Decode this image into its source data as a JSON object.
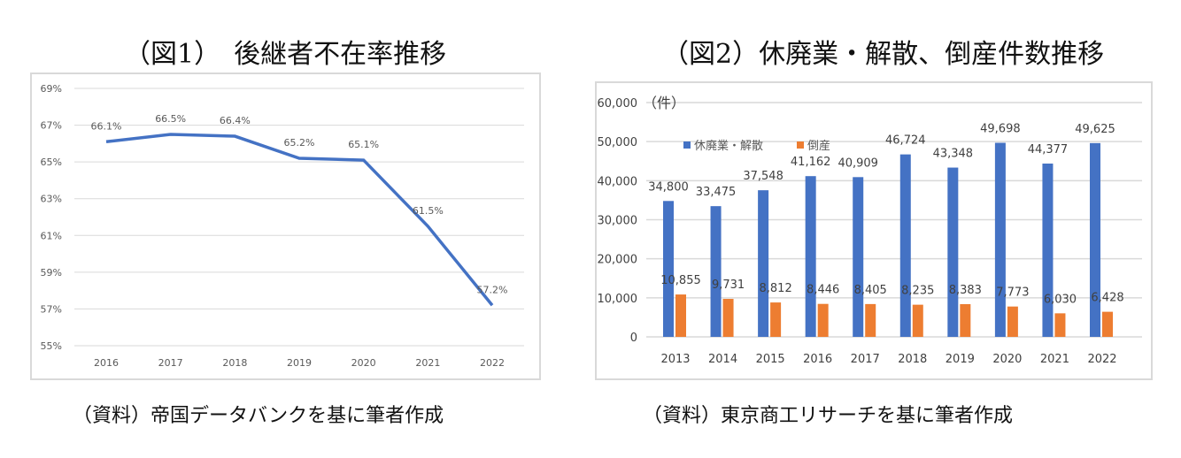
{
  "chart_data": [
    {
      "type": "line",
      "title": "（図1）　後継者不在率推移",
      "caption": "（資料）帝国データバンクを基に筆者作成",
      "categories": [
        "2016",
        "2017",
        "2018",
        "2019",
        "2020",
        "2021",
        "2022"
      ],
      "values": [
        66.1,
        66.5,
        66.4,
        65.2,
        65.1,
        61.5,
        57.2
      ],
      "data_labels": [
        "66.1%",
        "66.5%",
        "66.4%",
        "65.2%",
        "65.1%",
        "61.5%",
        "57.2%"
      ],
      "ylim": [
        55,
        69
      ],
      "yticks": [
        "69%",
        "67%",
        "65%",
        "63%",
        "61%",
        "59%",
        "57%",
        "55%"
      ],
      "ytick_values": [
        69,
        67,
        65,
        63,
        61,
        59,
        57,
        55
      ],
      "grid": true,
      "color": "#4472c4"
    },
    {
      "type": "bar",
      "title": "（図2）休廃業・解散、倒産件数推移",
      "caption": "（資料）東京商工リサーチを基に筆者作成",
      "unit_label": "（件）",
      "categories": [
        "2013",
        "2014",
        "2015",
        "2016",
        "2017",
        "2018",
        "2019",
        "2020",
        "2021",
        "2022"
      ],
      "series": [
        {
          "name": "休廃業・解散",
          "color": "#4472c4",
          "values": [
            34800,
            33475,
            37548,
            41162,
            40909,
            46724,
            43348,
            49698,
            44377,
            49625
          ],
          "labels": [
            "34,800",
            "33,475",
            "37,548",
            "41,162",
            "40,909",
            "46,724",
            "43,348",
            "49,698",
            "44,377",
            "49,625"
          ]
        },
        {
          "name": "倒産",
          "color": "#ed7d31",
          "values": [
            10855,
            9731,
            8812,
            8446,
            8405,
            8235,
            8383,
            7773,
            6030,
            6428
          ],
          "labels": [
            "10,855",
            "9,731",
            "8,812",
            "8,446",
            "8,405",
            "8,235",
            "8,383",
            "7,773",
            "6,030",
            "6,428"
          ]
        }
      ],
      "ylim": [
        0,
        60000
      ],
      "yticks": [
        "60,000",
        "50,000",
        "40,000",
        "30,000",
        "20,000",
        "10,000",
        "0"
      ],
      "ytick_values": [
        60000,
        50000,
        40000,
        30000,
        20000,
        10000,
        0
      ],
      "grid": true,
      "legend": "top-left"
    }
  ]
}
